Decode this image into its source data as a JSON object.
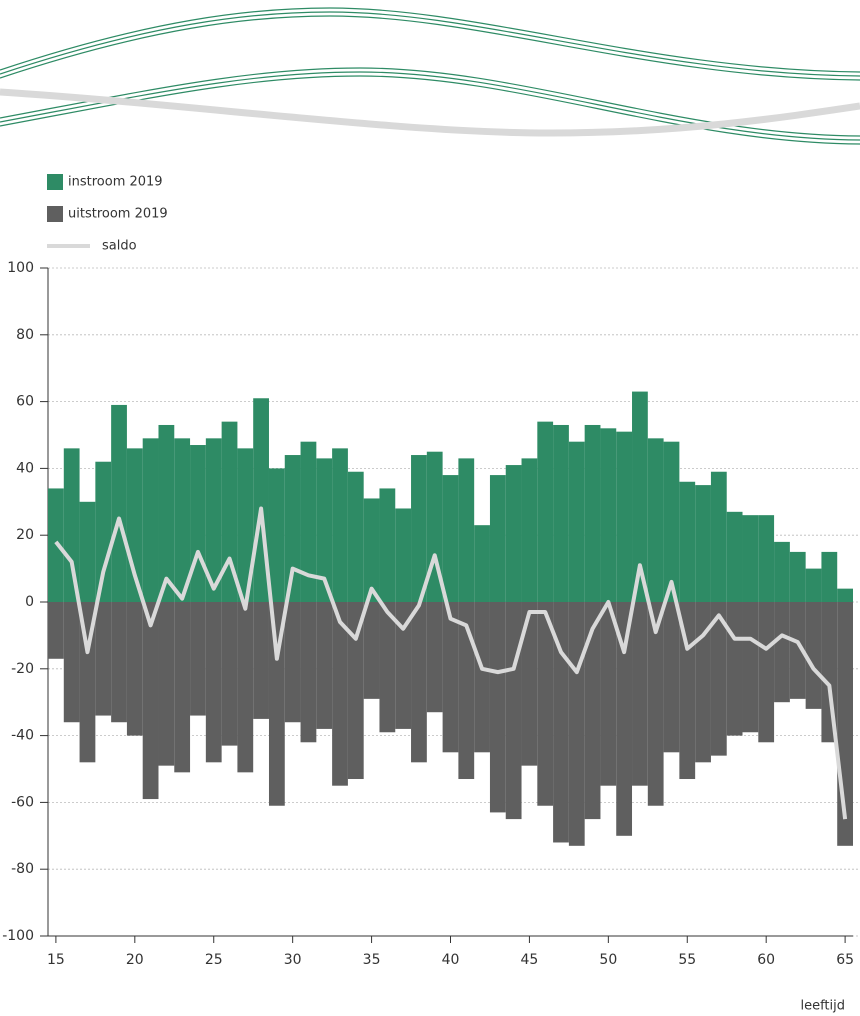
{
  "chart_data": {
    "type": "bar-line",
    "x": [
      15,
      16,
      17,
      18,
      19,
      20,
      21,
      22,
      23,
      24,
      25,
      26,
      27,
      28,
      29,
      30,
      31,
      32,
      33,
      34,
      35,
      36,
      37,
      38,
      39,
      40,
      41,
      42,
      43,
      44,
      45,
      46,
      47,
      48,
      49,
      50,
      51,
      52,
      53,
      54,
      55,
      56,
      57,
      58,
      59,
      60,
      61,
      62,
      63,
      64,
      65
    ],
    "x_label": "leeftijd",
    "series": [
      {
        "name": "instroom 2019",
        "kind": "bar",
        "color": "#2e8b65",
        "values": [
          34,
          46,
          30,
          42,
          59,
          46,
          49,
          53,
          49,
          47,
          49,
          54,
          46,
          61,
          40,
          44,
          48,
          43,
          46,
          39,
          31,
          34,
          28,
          44,
          45,
          38,
          43,
          23,
          38,
          41,
          43,
          54,
          53,
          48,
          53,
          52,
          51,
          63,
          49,
          48,
          36,
          35,
          39,
          27,
          26,
          26,
          18,
          15,
          10,
          15,
          4
        ]
      },
      {
        "name": "uitstroom 2019",
        "kind": "bar",
        "color": "#5f5f5f",
        "values": [
          -17,
          -36,
          -48,
          -34,
          -36,
          -40,
          -59,
          -49,
          -51,
          -34,
          -48,
          -43,
          -51,
          -35,
          -61,
          -36,
          -42,
          -38,
          -55,
          -53,
          -29,
          -39,
          -38,
          -48,
          -33,
          -45,
          -53,
          -45,
          -63,
          -65,
          -49,
          -61,
          -72,
          -73,
          -65,
          -55,
          -70,
          -55,
          -61,
          -45,
          -53,
          -48,
          -46,
          -40,
          -39,
          -42,
          -30,
          -29,
          -32,
          -42,
          -73
        ]
      },
      {
        "name": "saldo",
        "kind": "line",
        "color": "#d9d9d9",
        "values": [
          18,
          12,
          -15,
          9,
          25,
          8,
          -7,
          7,
          1,
          15,
          4,
          13,
          -2,
          28,
          -17,
          10,
          8,
          7,
          -6,
          -11,
          4,
          -3,
          -8,
          -1,
          14,
          -5,
          -7,
          -20,
          -21,
          -20,
          -3,
          -3,
          -15,
          -21,
          -8,
          0,
          -15,
          11,
          -9,
          6,
          -14,
          -10,
          -4,
          -11,
          -11,
          -14,
          -10,
          -12,
          -20,
          -25,
          -65
        ]
      }
    ],
    "xlim": [
      14.5,
      65.5
    ],
    "xticks": [
      15,
      20,
      25,
      30,
      35,
      40,
      45,
      50,
      55,
      60,
      65
    ],
    "ylim": [
      -100,
      100
    ],
    "yticks": [
      -100,
      -80,
      -60,
      -40,
      -20,
      0,
      20,
      40,
      60,
      80,
      100
    ],
    "grid": true
  }
}
